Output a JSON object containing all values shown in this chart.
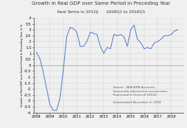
{
  "title": "Growth in Real GDP over Same Period in Preceding Year",
  "subtitle": "Real Terms in 2012$      2008Q1 to 2018Q3",
  "ylabel": "Growth in Real GDP over Same Period in Preceding Year, in %",
  "xlim_start": 2007.8,
  "xlim_end": 2018.9,
  "ylim": [
    -4.0,
    4.0
  ],
  "annotation": "Source:  BEA NIPA Accounts\nSeasonally adjusted at annual rates\nExpressed in terms of 2012$\n\nDownloaded November 4, 2018",
  "line_color": "#4472c4",
  "background_color": "#f0f0f0",
  "grid_color": "#c8c8c8",
  "quarters": [
    2008.0,
    2008.25,
    2008.5,
    2008.75,
    2009.0,
    2009.25,
    2009.5,
    2009.75,
    2010.0,
    2010.25,
    2010.5,
    2010.75,
    2011.0,
    2011.25,
    2011.5,
    2011.75,
    2012.0,
    2012.25,
    2012.5,
    2012.75,
    2013.0,
    2013.25,
    2013.5,
    2013.75,
    2014.0,
    2014.25,
    2014.5,
    2014.75,
    2015.0,
    2015.25,
    2015.5,
    2015.75,
    2016.0,
    2016.25,
    2016.5,
    2016.75,
    2017.0,
    2017.25,
    2017.5,
    2017.75,
    2018.0,
    2018.25,
    2018.5
  ],
  "values": [
    1.1,
    0.6,
    -0.5,
    -1.9,
    -3.3,
    -3.8,
    -3.8,
    -2.8,
    -0.4,
    2.4,
    3.2,
    3.1,
    2.8,
    1.6,
    1.6,
    2.0,
    2.8,
    2.7,
    2.6,
    1.6,
    1.0,
    1.5,
    1.4,
    2.6,
    2.5,
    2.6,
    2.4,
    1.6,
    3.0,
    3.4,
    2.2,
    1.9,
    1.4,
    1.5,
    1.4,
    1.9,
    2.0,
    2.2,
    2.5,
    2.5,
    2.6,
    2.9,
    3.0
  ]
}
